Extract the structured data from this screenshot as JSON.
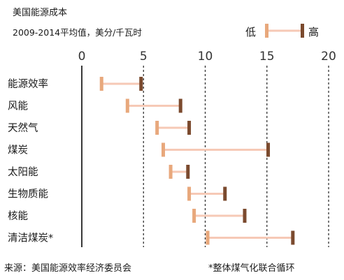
{
  "chart_data": {
    "type": "range",
    "title": "美国能源成本",
    "subtitle": "2009-2014平均值，美分/千瓦时",
    "legend": {
      "low": "低",
      "high": "高"
    },
    "xlim": [
      0,
      20
    ],
    "xticks": [
      0,
      5,
      10,
      15,
      20
    ],
    "categories": [
      "能源效率",
      "风能",
      "天然气",
      "煤炭",
      "太阳能",
      "生物质能",
      "核能",
      "清洁煤炭*"
    ],
    "low": [
      1.6,
      3.7,
      6.1,
      6.6,
      7.2,
      8.7,
      9.1,
      10.2
    ],
    "high": [
      4.8,
      8.0,
      8.7,
      15.1,
      8.6,
      11.6,
      13.2,
      17.1
    ],
    "grid": "vertical-dashed",
    "colors": {
      "low": "#e8a87c",
      "high": "#7b4a2e",
      "bar": "#f6c9b6",
      "axis": "#222222",
      "grid": "#333333"
    }
  },
  "footer": {
    "source": "来源：美国能源效率经济委员会",
    "note": "*整体煤气化联合循环"
  }
}
